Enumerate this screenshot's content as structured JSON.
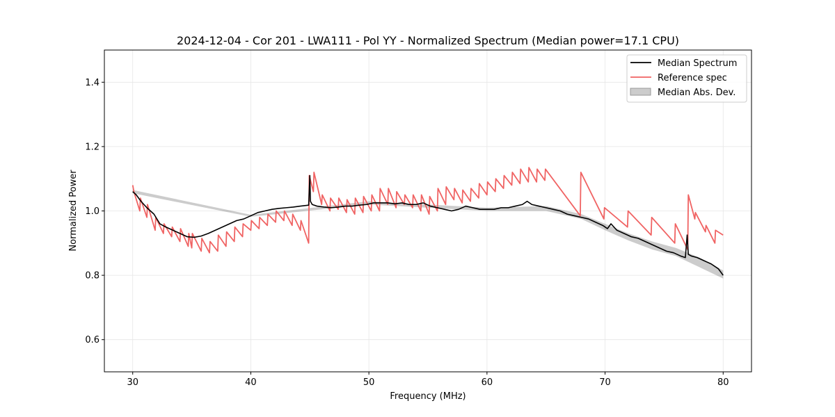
{
  "chart_data": {
    "type": "line",
    "title": "2024-12-04 - Cor 201 - LWA111 - Pol YY - Normalized Spectrum (Median power=17.1 CPU)",
    "xlabel": "Frequency (MHz)",
    "ylabel": "Normalized Power",
    "xlim": [
      27.6,
      82.4
    ],
    "ylim": [
      0.5,
      1.5
    ],
    "xticks": [
      30,
      40,
      50,
      60,
      70,
      80
    ],
    "yticks": [
      0.6,
      0.8,
      1.0,
      1.2,
      1.4
    ],
    "xtick_labels": [
      "30",
      "40",
      "50",
      "60",
      "70",
      "80"
    ],
    "ytick_labels": [
      "0.6",
      "0.8",
      "1.0",
      "1.2",
      "1.4"
    ],
    "grid": true,
    "legend_position": "top-right",
    "series": [
      {
        "name": "Median Spectrum",
        "color": "#000000",
        "x": [
          30.0,
          30.3,
          30.7,
          31.2,
          31.8,
          32.3,
          32.8,
          33.4,
          34.0,
          34.6,
          35.2,
          35.8,
          36.4,
          37.0,
          37.6,
          38.2,
          38.8,
          39.4,
          40.0,
          40.6,
          41.2,
          41.8,
          42.4,
          43.0,
          43.6,
          44.2,
          44.9,
          45.0,
          45.05,
          45.2,
          45.6,
          46.2,
          46.8,
          47.4,
          48.0,
          48.6,
          49.2,
          49.8,
          50.4,
          51.0,
          51.6,
          52.2,
          52.8,
          53.4,
          54.0,
          54.6,
          55.2,
          55.8,
          56.4,
          57.0,
          57.6,
          58.2,
          58.8,
          59.4,
          60.0,
          60.6,
          61.2,
          61.8,
          62.4,
          63.0,
          63.4,
          63.8,
          64.4,
          65.0,
          65.6,
          66.2,
          66.8,
          67.4,
          68.0,
          68.6,
          69.2,
          69.8,
          70.2,
          70.5,
          71.0,
          71.6,
          72.2,
          72.8,
          73.4,
          74.0,
          74.6,
          75.2,
          75.8,
          76.4,
          76.8,
          76.95,
          77.05,
          77.3,
          77.8,
          78.4,
          79.0,
          79.6,
          80.0
        ],
        "values": [
          1.06,
          1.05,
          1.03,
          1.01,
          0.99,
          0.96,
          0.95,
          0.94,
          0.93,
          0.92,
          0.918,
          0.922,
          0.93,
          0.94,
          0.95,
          0.96,
          0.97,
          0.975,
          0.985,
          0.995,
          1.0,
          1.005,
          1.008,
          1.01,
          1.012,
          1.015,
          1.018,
          1.11,
          1.03,
          1.02,
          1.015,
          1.012,
          1.01,
          1.012,
          1.015,
          1.015,
          1.018,
          1.02,
          1.025,
          1.025,
          1.025,
          1.022,
          1.025,
          1.02,
          1.02,
          1.025,
          1.015,
          1.01,
          1.005,
          1.0,
          1.005,
          1.015,
          1.01,
          1.005,
          1.005,
          1.005,
          1.01,
          1.01,
          1.015,
          1.02,
          1.03,
          1.02,
          1.015,
          1.01,
          1.005,
          1.0,
          0.99,
          0.985,
          0.98,
          0.975,
          0.965,
          0.955,
          0.945,
          0.96,
          0.94,
          0.93,
          0.92,
          0.915,
          0.905,
          0.895,
          0.885,
          0.875,
          0.87,
          0.86,
          0.855,
          0.925,
          0.865,
          0.86,
          0.855,
          0.845,
          0.835,
          0.82,
          0.8
        ]
      },
      {
        "name": "Reference spec",
        "color": "#f06363",
        "x": [
          30.0,
          30.1,
          30.6,
          30.65,
          31.2,
          31.25,
          31.9,
          31.95,
          32.6,
          32.65,
          33.3,
          33.35,
          34.0,
          34.05,
          34.7,
          34.75,
          35.0,
          35.05,
          35.8,
          35.85,
          36.5,
          36.55,
          37.2,
          37.25,
          37.9,
          37.95,
          38.6,
          38.65,
          39.3,
          39.35,
          40.0,
          40.05,
          40.7,
          40.75,
          41.4,
          41.45,
          42.1,
          42.15,
          42.8,
          42.85,
          43.5,
          43.55,
          44.2,
          44.25,
          44.9,
          44.95,
          45.3,
          45.35,
          46.0,
          46.05,
          46.7,
          46.75,
          47.4,
          47.45,
          48.1,
          48.15,
          48.8,
          48.85,
          49.5,
          49.55,
          50.2,
          50.25,
          50.9,
          50.95,
          51.6,
          51.65,
          52.3,
          52.35,
          53.0,
          53.05,
          53.7,
          53.75,
          54.4,
          54.45,
          55.1,
          55.15,
          55.8,
          55.85,
          56.5,
          56.55,
          57.2,
          57.25,
          57.9,
          57.95,
          58.6,
          58.65,
          59.3,
          59.35,
          60.0,
          60.05,
          60.7,
          60.75,
          61.4,
          61.45,
          62.1,
          62.15,
          62.8,
          62.85,
          63.5,
          63.55,
          64.2,
          64.25,
          64.9,
          64.95,
          67.9,
          67.95,
          69.9,
          69.95,
          71.9,
          71.95,
          73.9,
          73.95,
          75.9,
          75.95,
          77.0,
          77.05,
          77.6,
          77.65,
          78.5,
          78.55,
          79.3,
          79.35,
          80.0
        ],
        "values": [
          1.08,
          1.06,
          1.0,
          1.04,
          0.98,
          1.02,
          0.94,
          0.98,
          0.93,
          0.96,
          0.92,
          0.95,
          0.905,
          0.945,
          0.89,
          0.93,
          0.885,
          0.93,
          0.875,
          0.915,
          0.87,
          0.905,
          0.875,
          0.925,
          0.89,
          0.935,
          0.905,
          0.95,
          0.92,
          0.96,
          0.94,
          0.97,
          0.945,
          0.98,
          0.955,
          0.99,
          0.965,
          1.0,
          0.97,
          1.0,
          0.955,
          0.99,
          0.94,
          0.97,
          0.9,
          1.11,
          1.06,
          1.12,
          1.02,
          1.05,
          1.0,
          1.04,
          1.005,
          1.04,
          0.995,
          1.035,
          0.99,
          1.04,
          0.995,
          1.045,
          1.0,
          1.05,
          1.0,
          1.07,
          1.02,
          1.07,
          1.01,
          1.06,
          1.02,
          1.05,
          1.01,
          1.05,
          1.0,
          1.05,
          0.99,
          1.045,
          1.0,
          1.07,
          1.02,
          1.075,
          1.035,
          1.07,
          1.025,
          1.065,
          1.03,
          1.07,
          1.04,
          1.085,
          1.05,
          1.09,
          1.06,
          1.1,
          1.07,
          1.11,
          1.08,
          1.12,
          1.085,
          1.13,
          1.09,
          1.135,
          1.09,
          1.13,
          1.095,
          1.13,
          0.985,
          1.12,
          0.975,
          1.01,
          0.95,
          1.0,
          0.925,
          0.98,
          0.9,
          0.96,
          0.88,
          1.05,
          0.975,
          0.995,
          0.935,
          0.955,
          0.9,
          0.94,
          0.925
        ]
      },
      {
        "name": "Median Abs. Dev.",
        "color": "#000000",
        "fill_opacity": 0.2,
        "type": "band",
        "x": [
          30.0,
          40.0,
          50.0,
          60.0,
          65.0,
          68.0,
          70.0,
          72.0,
          74.0,
          76.0,
          78.0,
          80.0
        ],
        "lower": [
          1.055,
          0.982,
          1.02,
          1.0,
          1.0,
          0.975,
          0.94,
          0.908,
          0.88,
          0.86,
          0.825,
          0.79
        ],
        "upper": [
          1.065,
          0.988,
          1.03,
          1.01,
          1.015,
          0.99,
          0.96,
          0.93,
          0.905,
          0.885,
          0.855,
          0.815
        ]
      }
    ]
  }
}
